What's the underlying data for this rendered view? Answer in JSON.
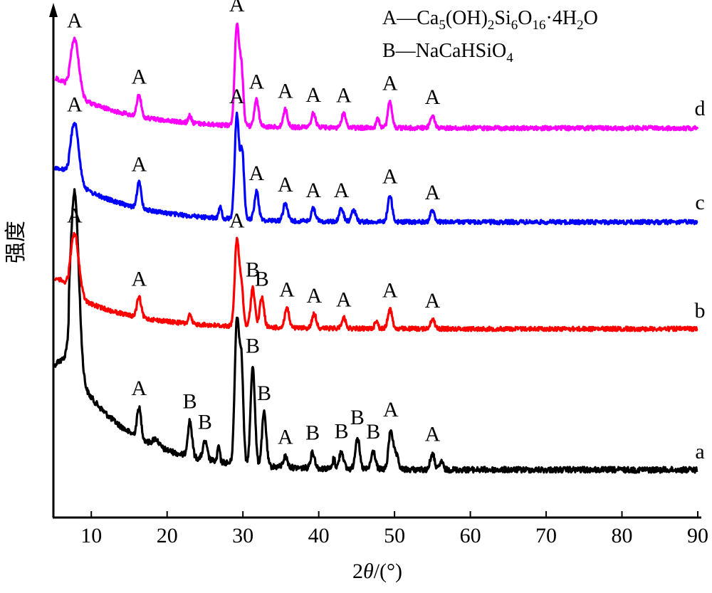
{
  "legend": {
    "line_a_prefix": "A—Ca",
    "line_a_sub1": "5",
    "line_a_mid1": "(OH)",
    "line_a_sub2": "2",
    "line_a_mid2": "Si",
    "line_a_sub3": "6",
    "line_a_mid3": "O",
    "line_a_sub4": "16",
    "line_a_mid4": "·4H",
    "line_a_sub5": "2",
    "line_a_end": "O",
    "line_b_prefix": "B—NaCaHSiO",
    "line_b_sub": "4"
  },
  "chart_data": {
    "type": "line",
    "xlabel_prefix": "2",
    "xlabel_theta": "θ",
    "xlabel_suffix": "/(°)",
    "ylabel": "强度",
    "xlim": [
      5,
      90
    ],
    "x_ticks": [
      "10",
      "20",
      "30",
      "40",
      "50",
      "60",
      "70",
      "80",
      "90"
    ],
    "grid": false,
    "series": [
      {
        "name": "a",
        "color": "#000000",
        "peaks": [
          {
            "x": 7.8,
            "label": ""
          },
          {
            "x": 16.3,
            "label": "A"
          },
          {
            "x": 23.0,
            "label": "B"
          },
          {
            "x": 25.0,
            "label": "B"
          },
          {
            "x": 29.2,
            "label": ""
          },
          {
            "x": 31.3,
            "label": "B"
          },
          {
            "x": 32.8,
            "label": "B"
          },
          {
            "x": 35.6,
            "label": "A"
          },
          {
            "x": 39.2,
            "label": "B"
          },
          {
            "x": 43.0,
            "label": "B"
          },
          {
            "x": 45.1,
            "label": "B"
          },
          {
            "x": 47.2,
            "label": "B"
          },
          {
            "x": 49.5,
            "label": "A"
          },
          {
            "x": 55.0,
            "label": "A"
          }
        ]
      },
      {
        "name": "b",
        "color": "#ff0000",
        "peaks": [
          {
            "x": 7.8,
            "label": "A"
          },
          {
            "x": 16.3,
            "label": "A"
          },
          {
            "x": 29.2,
            "label": "A"
          },
          {
            "x": 31.3,
            "label": "B"
          },
          {
            "x": 32.5,
            "label": "B"
          },
          {
            "x": 35.8,
            "label": "A"
          },
          {
            "x": 39.4,
            "label": "A"
          },
          {
            "x": 43.3,
            "label": "A"
          },
          {
            "x": 49.4,
            "label": "A"
          },
          {
            "x": 55.0,
            "label": "A"
          }
        ]
      },
      {
        "name": "c",
        "color": "#0000ff",
        "peaks": [
          {
            "x": 7.8,
            "label": "A"
          },
          {
            "x": 16.3,
            "label": "A"
          },
          {
            "x": 29.2,
            "label": "A"
          },
          {
            "x": 31.8,
            "label": "A"
          },
          {
            "x": 35.6,
            "label": "A"
          },
          {
            "x": 39.3,
            "label": "A"
          },
          {
            "x": 43.0,
            "label": "A"
          },
          {
            "x": 49.4,
            "label": "A"
          },
          {
            "x": 55.0,
            "label": "A"
          }
        ]
      },
      {
        "name": "d",
        "color": "#ff00ff",
        "peaks": [
          {
            "x": 7.8,
            "label": "A"
          },
          {
            "x": 16.3,
            "label": "A"
          },
          {
            "x": 29.2,
            "label": "A"
          },
          {
            "x": 31.8,
            "label": "A"
          },
          {
            "x": 35.6,
            "label": "A"
          },
          {
            "x": 39.3,
            "label": "A"
          },
          {
            "x": 43.3,
            "label": "A"
          },
          {
            "x": 49.4,
            "label": "A"
          },
          {
            "x": 55.0,
            "label": "A"
          }
        ]
      }
    ]
  }
}
